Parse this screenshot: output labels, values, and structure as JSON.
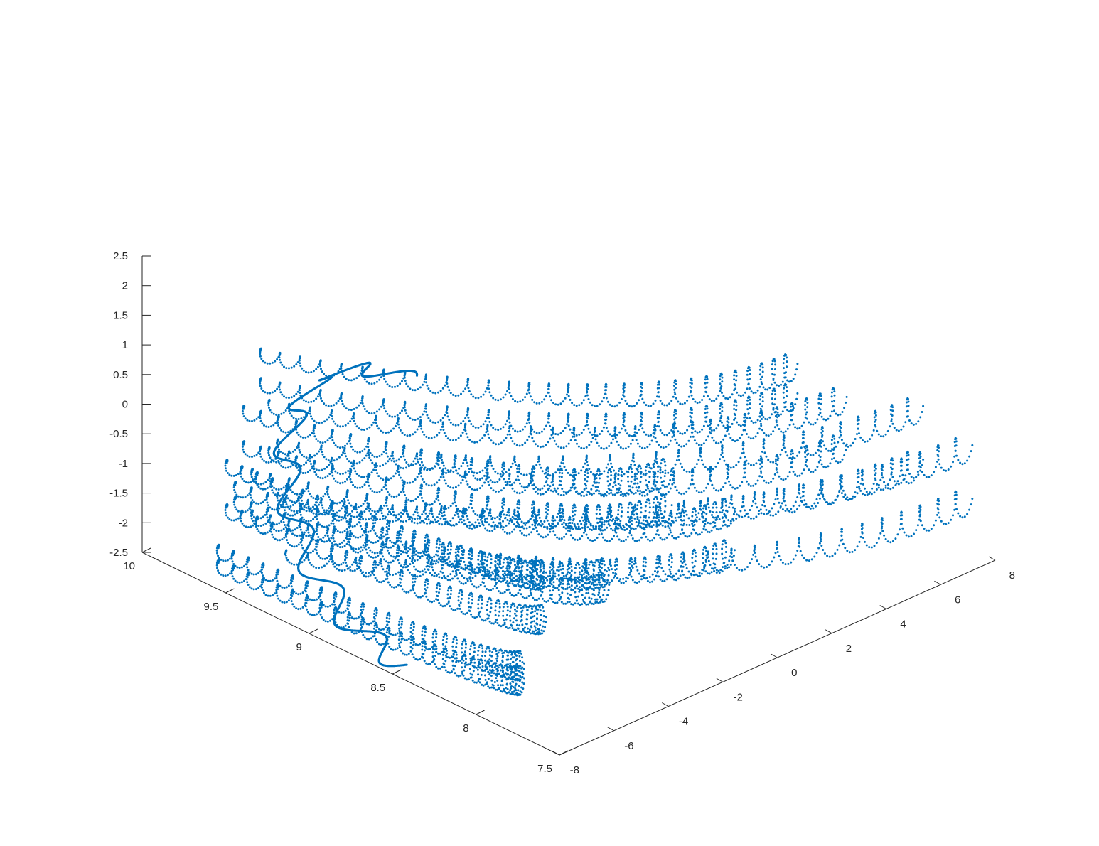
{
  "chart_data": {
    "type": "scatter3d",
    "title": "",
    "xlabel": "",
    "ylabel": "",
    "zlabel": "",
    "grid": false,
    "legend": "none",
    "marker_color": "#0072BD",
    "axes": {
      "x": {
        "range": [
          -8,
          8
        ],
        "ticks": [
          "-8",
          "-6",
          "-4",
          "-2",
          "0",
          "2",
          "4",
          "6",
          "8"
        ]
      },
      "y": {
        "range": [
          7.5,
          10
        ],
        "ticks": [
          "7.5",
          "8",
          "8.5",
          "9",
          "9.5",
          "10"
        ]
      },
      "z": {
        "range": [
          -2.5,
          2.5
        ],
        "ticks": [
          "-2.5",
          "-2",
          "-1.5",
          "-1",
          "-0.5",
          "0",
          "0.5",
          "1",
          "1.5",
          "2",
          "2.5"
        ]
      }
    },
    "series": [
      {
        "kind": "coil-sweep",
        "description_of_structure": "helical coils of points bent around an arc; y is the sweep coordinate",
        "ribs": [
          {
            "x_end": -6.5,
            "z_levels": [
              -2.2,
              -1.95
            ]
          },
          {
            "x_end": -6.0,
            "z_levels": [
              -1.2,
              -0.45
            ]
          },
          {
            "x_end": -4.0,
            "z_levels": [
              -1.0,
              -0.75
            ]
          },
          {
            "x_end": -2.0,
            "z_levels": [
              0.0,
              0.6
            ]
          },
          {
            "x_end": 0.0,
            "z_levels": [
              -1.1,
              -0.4
            ]
          },
          {
            "x_end": 2.0,
            "z_levels": [
              1.2,
              1.7
            ]
          },
          {
            "x_end": 3.5,
            "z_levels": [
              0.1,
              0.9
            ]
          },
          {
            "x_end": 6.0,
            "z_levels": [
              -0.6,
              0.3
            ]
          },
          {
            "x_end": 7.5,
            "z_levels": [
              -1.5,
              -0.6
            ]
          }
        ],
        "coil_amplitude": 0.25,
        "y_arc": {
          "y_start": 9.6,
          "y_end": 7.8
        }
      }
    ]
  }
}
